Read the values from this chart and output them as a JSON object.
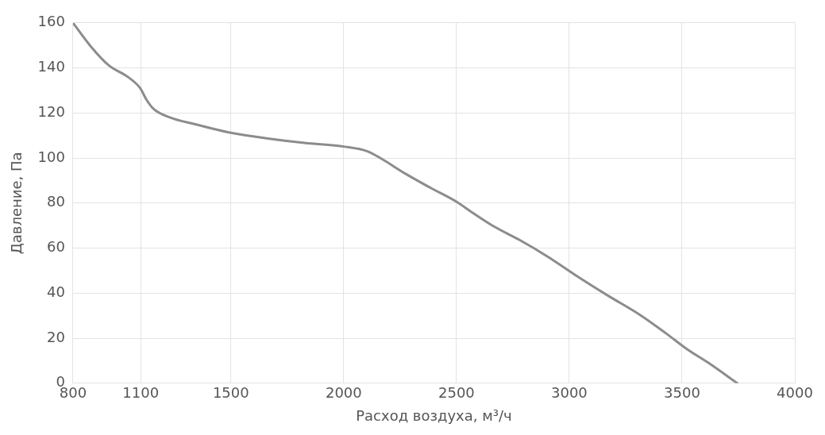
{
  "chart_data": {
    "type": "line",
    "xlabel": "Расход воздуха, м³/ч",
    "ylabel": "Давление, Па",
    "x": [
      800,
      875,
      960,
      1043,
      1098,
      1125,
      1155,
      1229,
      1341,
      1509,
      1677,
      1826,
      2005,
      2105,
      2162,
      2274,
      2386,
      2498,
      2573,
      2666,
      2778,
      2908,
      3020,
      3170,
      3319,
      3431,
      3524,
      3618,
      3745
    ],
    "values": [
      160,
      150,
      141,
      136,
      131,
      126,
      122,
      118,
      115,
      111,
      108.5,
      106.7,
      105,
      103,
      100,
      93,
      86.7,
      80.7,
      75.6,
      69.6,
      63.7,
      56,
      48.5,
      39,
      30,
      22,
      15,
      9,
      0
    ],
    "color": "#8c8c8c",
    "xlim": [
      800,
      4000
    ],
    "xticks": [
      800,
      1100,
      1500,
      2000,
      2500,
      3000,
      3500,
      4000
    ],
    "ylim": [
      0,
      160
    ],
    "yticks": [
      0,
      20,
      40,
      60,
      80,
      100,
      120,
      140,
      160
    ],
    "grid": true,
    "legend": false,
    "marker": "none",
    "line_style": "solid"
  }
}
